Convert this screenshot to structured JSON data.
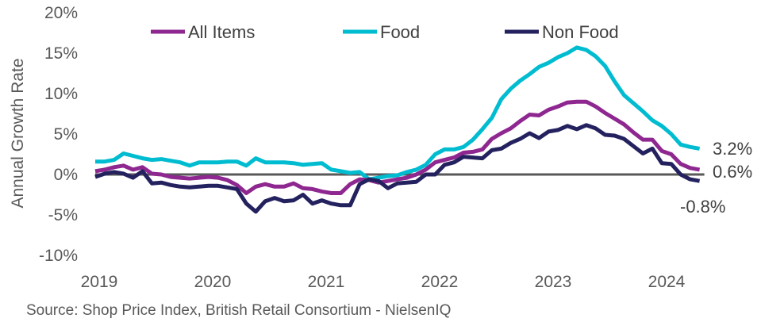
{
  "chart_data": {
    "type": "line",
    "title": "",
    "xlabel": "",
    "ylabel": "Annual Growth Rate",
    "ylim": [
      -10,
      20
    ],
    "yticks": [
      "-10%",
      "-5%",
      "0%",
      "5%",
      "10%",
      "15%",
      "20%"
    ],
    "ytick_values": [
      -10,
      -5,
      0,
      5,
      10,
      15,
      20
    ],
    "xticks": [
      "2019",
      "2020",
      "2021",
      "2022",
      "2023",
      "2024"
    ],
    "x_start": "2019-01",
    "x_frequency": "monthly",
    "legend_position": "top",
    "grid": false,
    "series": [
      {
        "name": "All Items",
        "color": "#8E278F",
        "end_label": "0.6%",
        "values": [
          0.4,
          0.6,
          0.9,
          1.1,
          0.6,
          0.9,
          0.1,
          0.0,
          -0.3,
          -0.4,
          -0.5,
          -0.4,
          -0.3,
          -0.4,
          -0.7,
          -1.3,
          -2.3,
          -1.5,
          -1.2,
          -1.5,
          -1.5,
          -1.1,
          -1.7,
          -1.8,
          -2.1,
          -2.3,
          -2.3,
          -1.2,
          -0.6,
          -0.7,
          -1.0,
          -0.8,
          -0.6,
          -0.4,
          0.0,
          0.6,
          1.5,
          1.8,
          2.1,
          2.7,
          2.8,
          3.1,
          4.4,
          5.1,
          5.7,
          6.6,
          7.4,
          7.3,
          8.0,
          8.4,
          8.9,
          9.0,
          9.0,
          8.4,
          7.6,
          6.9,
          6.2,
          5.2,
          4.3,
          4.3,
          2.9,
          2.5,
          1.3,
          0.8,
          0.6
        ]
      },
      {
        "name": "Food",
        "color": "#00BCD0",
        "end_label": "3.2%",
        "values": [
          1.6,
          1.6,
          1.8,
          2.6,
          2.3,
          2.0,
          1.8,
          1.9,
          1.7,
          1.5,
          1.1,
          1.5,
          1.5,
          1.5,
          1.6,
          1.6,
          1.1,
          2.0,
          1.5,
          1.5,
          1.5,
          1.4,
          1.2,
          1.3,
          1.4,
          0.6,
          0.4,
          0.2,
          0.3,
          -0.6,
          -0.4,
          -0.2,
          -0.1,
          0.3,
          0.6,
          1.2,
          2.5,
          3.1,
          3.1,
          3.4,
          4.3,
          5.6,
          7.0,
          9.3,
          10.6,
          11.6,
          12.4,
          13.3,
          13.8,
          14.5,
          15.0,
          15.7,
          15.4,
          14.6,
          13.4,
          11.5,
          9.8,
          8.8,
          7.8,
          6.7,
          6.0,
          5.0,
          3.7,
          3.4,
          3.2
        ]
      },
      {
        "name": "Non Food",
        "color": "#24215F",
        "end_label": "-0.8%",
        "values": [
          -0.3,
          0.1,
          0.3,
          0.1,
          -0.4,
          0.4,
          -1.1,
          -1.0,
          -1.3,
          -1.5,
          -1.6,
          -1.5,
          -1.4,
          -1.4,
          -1.6,
          -1.8,
          -3.6,
          -4.6,
          -3.3,
          -2.9,
          -3.3,
          -3.2,
          -2.5,
          -3.6,
          -3.2,
          -3.6,
          -3.8,
          -3.8,
          -1.2,
          -0.6,
          -0.8,
          -1.7,
          -1.1,
          -1.0,
          -0.9,
          0.0,
          0.0,
          1.2,
          1.5,
          2.2,
          2.1,
          2.0,
          3.0,
          3.2,
          3.9,
          4.4,
          5.1,
          4.5,
          5.3,
          5.5,
          6.0,
          5.6,
          6.1,
          5.7,
          4.9,
          4.8,
          4.4,
          3.5,
          2.6,
          3.2,
          1.4,
          1.3,
          0.0,
          -0.6,
          -0.8
        ]
      }
    ],
    "source": "Source: Shop Price Index, British Retail Consortium - NielsenIQ"
  }
}
